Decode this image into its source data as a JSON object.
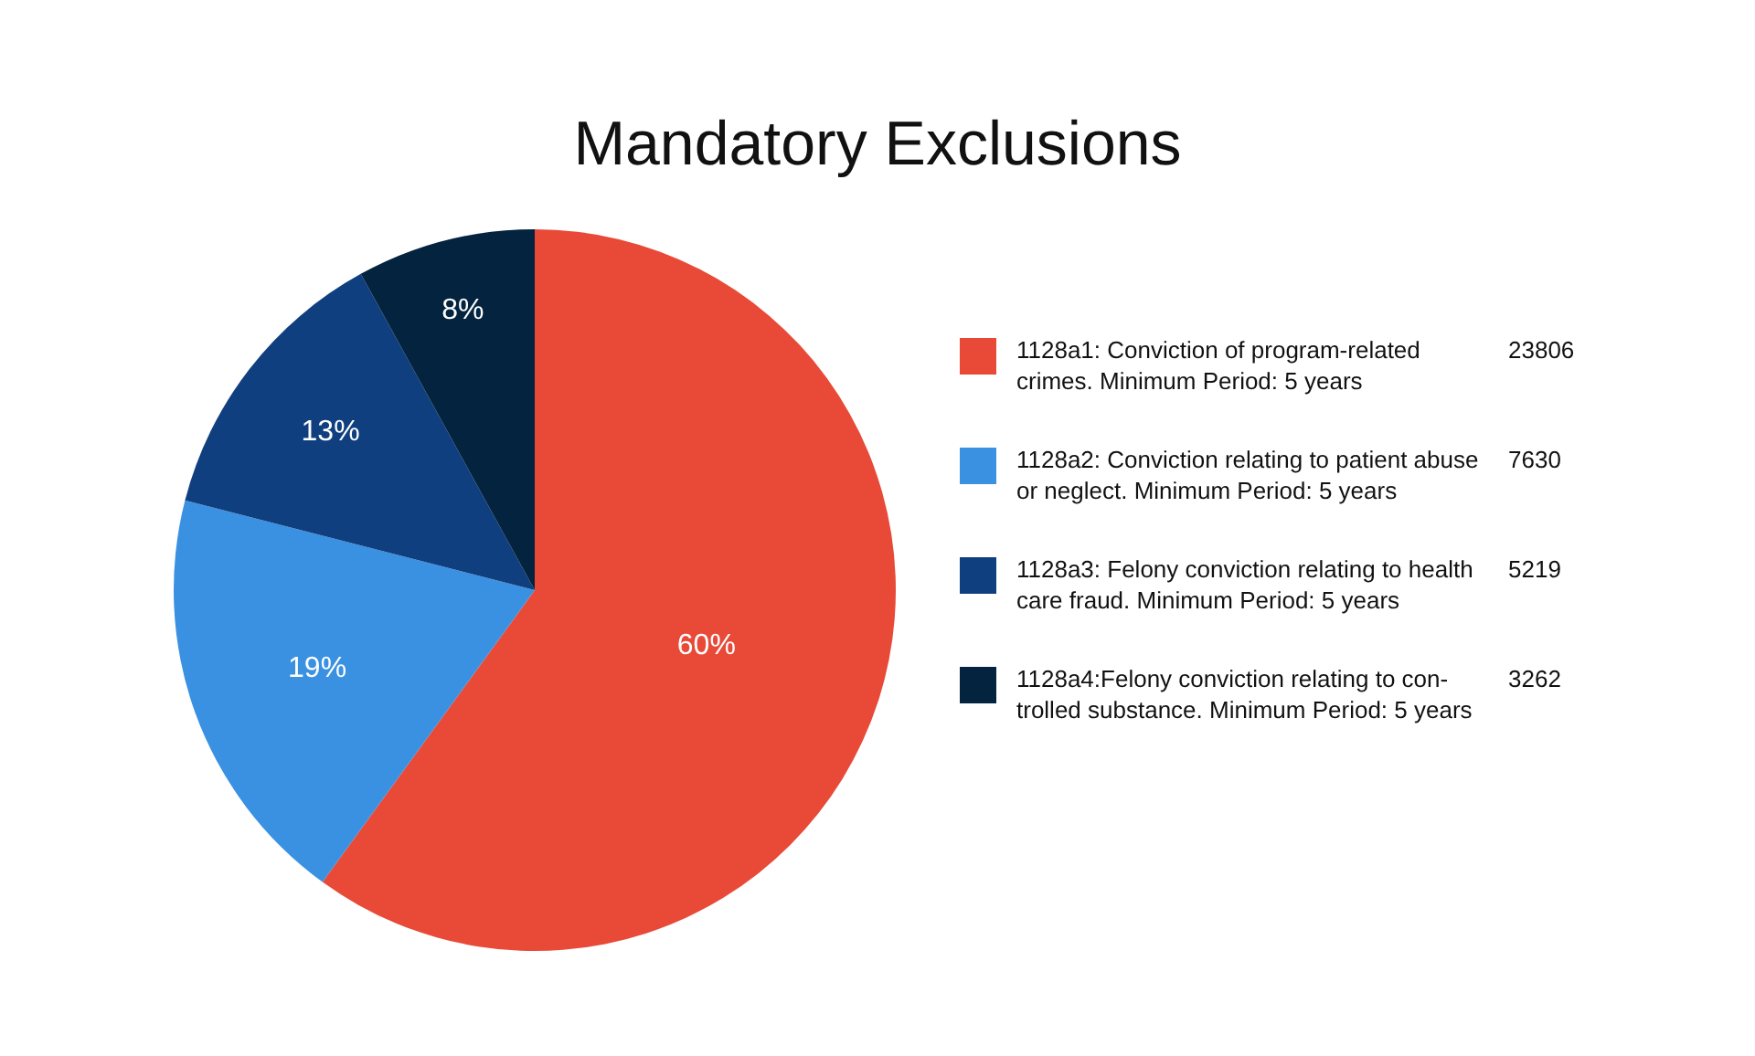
{
  "chart_data": {
    "type": "pie",
    "title": "Mandatory Exclusions",
    "categories": [
      "1128a1: Conviction of program-related crimes. Minimum Period: 5 years",
      "1128a2: Conviction relating to patient abuse or neglect. Minimum Period: 5 years",
      "1128a3: Felony conviction relating to health care fraud. Minimum Period: 5 years",
      "1128a4:Felony conviction relating to con-trolled substance. Minimum Period: 5 years"
    ],
    "values": [
      60,
      19,
      13,
      8
    ],
    "value_labels": [
      "60%",
      "19%",
      "13%",
      "8%"
    ],
    "annotations": [
      "23806",
      "7630",
      "5219",
      "3262"
    ],
    "colors": [
      "#e84a37",
      "#3a91e2",
      "#0f3f7f",
      "#03233f"
    ],
    "legend": "right"
  }
}
